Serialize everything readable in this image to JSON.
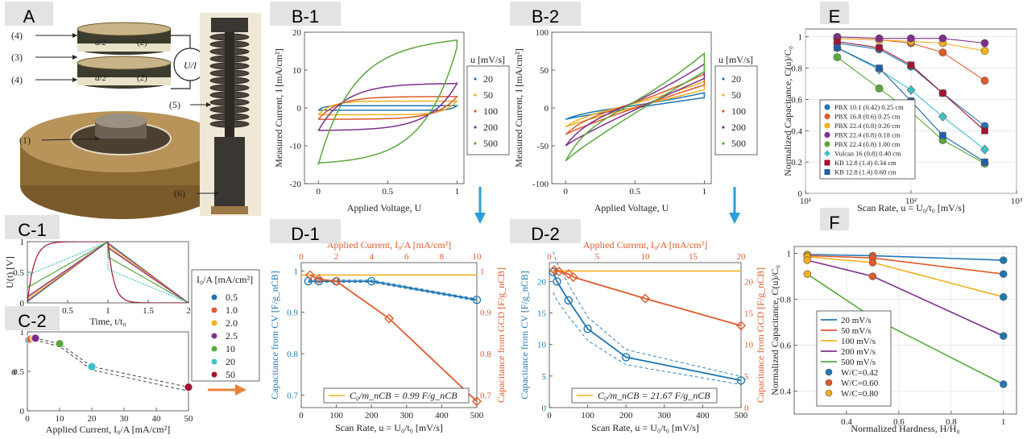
{
  "panels": {
    "A": {
      "label": "A",
      "callouts": [
        "(4)",
        "(3)",
        "(4)",
        "(1)",
        "(5)",
        "(6)"
      ],
      "half_d": "d/2",
      "ring": "(2)",
      "meter": "U/I"
    },
    "B1": {
      "label": "B-1"
    },
    "B2": {
      "label": "B-2"
    },
    "C1": {
      "label": "C-1"
    },
    "C2": {
      "label": "C-2"
    },
    "D1": {
      "label": "D-1"
    },
    "D2": {
      "label": "D-2"
    },
    "E": {
      "label": "E"
    },
    "F": {
      "label": "F"
    }
  },
  "colors": {
    "blue": "#1f77b4",
    "orange": "#e05a2b",
    "yellow": "#f2b01e",
    "purple": "#7e2f8e",
    "green": "#5aa83c",
    "cyan": "#3fc1c9",
    "crimson": "#a2142f",
    "darkred": "#a2142f",
    "arrow_blue": "#2a9fd8",
    "arrow_orange": "#e8823a"
  },
  "chart_data": [
    {
      "id": "B1",
      "type": "line",
      "xlabel": "Applied Voltage, U",
      "ylabel": "Measured Current, I [mA/cm²]",
      "xlim": [
        -0.1,
        1.05
      ],
      "ylim": [
        -20,
        20
      ],
      "xticks": [
        "0",
        "0.5",
        "1"
      ],
      "yticks": [
        "-20",
        "-10",
        "0",
        "10",
        "20"
      ],
      "legend_title": "u [mV/s]",
      "series": [
        {
          "name": "20",
          "color": "#1f77b4",
          "plateau_top": 0.6,
          "plateau_bottom": -0.6
        },
        {
          "name": "50",
          "color": "#f2b01e",
          "plateau_top": 1.8,
          "plateau_bottom": -1.8
        },
        {
          "name": "100",
          "color": "#e05a2b",
          "plateau_top": 3.0,
          "plateau_bottom": -3.0
        },
        {
          "name": "200",
          "color": "#7e2f8e",
          "plateau_top": 6.5,
          "plateau_bottom": -6.0
        },
        {
          "name": "500",
          "color": "#5aa83c",
          "plateau_top": 16,
          "plateau_bottom": -15
        }
      ]
    },
    {
      "id": "B2",
      "type": "line",
      "xlabel": "Applied Voltage, U",
      "ylabel": "Measured Current, I [mA/cm²]",
      "xlim": [
        -0.1,
        1.05
      ],
      "ylim": [
        -100,
        100
      ],
      "xticks": [
        "0",
        "0.5",
        "1"
      ],
      "yticks": [
        "-100",
        "-50",
        "0",
        "50",
        "100"
      ],
      "legend_title": "u [mV/s]",
      "series": [
        {
          "name": "20",
          "color": "#1f77b4",
          "top_right": 20,
          "bottom_left": -15
        },
        {
          "name": "50",
          "color": "#f2b01e",
          "top_right": 35,
          "bottom_left": -25
        },
        {
          "name": "100",
          "color": "#e05a2b",
          "top_right": 45,
          "bottom_left": -35
        },
        {
          "name": "200",
          "color": "#7e2f8e",
          "top_right": 58,
          "bottom_left": -50
        },
        {
          "name": "500",
          "color": "#5aa83c",
          "top_right": 72,
          "bottom_left": -70
        }
      ]
    },
    {
      "id": "C1",
      "type": "line",
      "xlabel": "Time, t/t₀",
      "ylabel": "U(t) [V]",
      "xlim": [
        0,
        2
      ],
      "ylim": [
        0,
        1
      ],
      "xticks": [
        "0",
        "0.5",
        "1",
        "1.5",
        "2"
      ],
      "yticks": [
        "0",
        "0.5",
        "1"
      ],
      "legend_title": "I₀/A [mA/cm²]",
      "legend": [
        "0.5",
        "1.0",
        "2.0",
        "2.5",
        "10",
        "20",
        "50"
      ],
      "legend_colors": [
        "#1f77b4",
        "#e05a2b",
        "#f2b01e",
        "#7e2f8e",
        "#5aa83c",
        "#3fc1c9",
        "#a2142f"
      ]
    },
    {
      "id": "C2",
      "type": "scatter",
      "xlabel": "Applied Current, I₀/A [mA/cm²]",
      "ylabel": "α",
      "xlim": [
        0,
        50
      ],
      "ylim": [
        0,
        1
      ],
      "xticks": [
        "0",
        "10",
        "20",
        "30",
        "40",
        "50"
      ],
      "yticks": [
        "0",
        "0.5",
        "1"
      ],
      "x": [
        0.5,
        1.0,
        2.0,
        2.5,
        10,
        20,
        50
      ],
      "y": [
        0.9,
        0.91,
        0.92,
        0.92,
        0.85,
        0.56,
        0.3
      ],
      "colors": [
        "#1f77b4",
        "#e05a2b",
        "#f2b01e",
        "#7e2f8e",
        "#5aa83c",
        "#3fc1c9",
        "#a2142f"
      ]
    },
    {
      "id": "D1",
      "type": "line",
      "xlabel": "Scan Rate, u = U₀/t₀ [mV/s]",
      "ylabel_left": "Capacitance from CV [F/g_nCB]",
      "ylabel_right": "Capacitance from GCD [F/g_nCB]",
      "xlabel_top": "Applied Current, I₀/A [mA/cm²]",
      "xlim": [
        0,
        500
      ],
      "ylim_left": [
        0.67,
        1.02
      ],
      "xlim_top": [
        0,
        10
      ],
      "ylim_right": [
        0.67,
        1.02
      ],
      "xticks": [
        "0",
        "100",
        "200",
        "300",
        "400",
        "500"
      ],
      "xticks_top": [
        "0",
        "2",
        "4",
        "6",
        "8",
        "10"
      ],
      "yticks": [
        "0.7",
        "0.8",
        "0.9",
        "1"
      ],
      "legend": "C₀/m_nCB = 0.99 F/g_nCB",
      "series": [
        {
          "name": "CV",
          "color": "#1f77b4",
          "x": [
            20,
            50,
            100,
            200,
            500
          ],
          "y": [
            0.975,
            0.975,
            0.975,
            0.975,
            0.93
          ]
        },
        {
          "name": "GCD",
          "color": "#e05a2b",
          "x_top": [
            0.5,
            1.0,
            2.0,
            5.0,
            10.0
          ],
          "y": [
            0.99,
            0.98,
            0.975,
            0.885,
            0.685
          ]
        },
        {
          "name": "C0",
          "color": "#f2b01e",
          "y_const": 0.99
        }
      ]
    },
    {
      "id": "D2",
      "type": "line",
      "xlabel": "Scan Rate, u = U₀/t₀ [mV/s]",
      "ylabel_left": "Capacitance from CV [F/g_nCB]",
      "ylabel_right": "Capacitance from GCD [F/g_nCB]",
      "xlabel_top": "Applied Current, I₀/A [mA/cm²]",
      "xlim": [
        0,
        500
      ],
      "ylim_left": [
        0,
        23
      ],
      "xlim_top": [
        0,
        20
      ],
      "ylim_right": [
        0,
        23
      ],
      "xticks": [
        "0",
        "100",
        "200",
        "300",
        "400",
        "500"
      ],
      "xticks_top": [
        "0",
        "5",
        "10",
        "15",
        "20"
      ],
      "yticks": [
        "0",
        "5",
        "10",
        "15",
        "20"
      ],
      "legend": "C₀/m_nCB = 21.67 F/g_nCB",
      "series": [
        {
          "name": "CV",
          "color": "#1f77b4",
          "x": [
            10,
            20,
            50,
            100,
            200,
            500
          ],
          "y": [
            21.5,
            20,
            17,
            12.5,
            8,
            4.3
          ]
        },
        {
          "name": "GCD",
          "color": "#e05a2b",
          "x_top": [
            0.5,
            1.0,
            2.0,
            2.5,
            10,
            20
          ],
          "y": [
            21.8,
            21.6,
            21.2,
            20.7,
            17.3,
            13
          ]
        },
        {
          "name": "C0",
          "color": "#f2b01e",
          "y_const": 21.67
        }
      ]
    },
    {
      "id": "E",
      "type": "line",
      "xlabel": "Scan Rate, u = U₀/t₀ [mV/s]",
      "ylabel": "Normalized Capacitance, C(u)/C₀",
      "xscale": "log",
      "xlim": [
        10,
        1000
      ],
      "ylim": [
        0,
        1.05
      ],
      "xticks": [
        "10¹",
        "10²",
        "10³"
      ],
      "yticks": [
        "0",
        "0.2",
        "0.4",
        "0.6",
        "0.8",
        "1"
      ],
      "x": [
        20,
        50,
        100,
        200,
        500
      ],
      "series": [
        {
          "name": "PBX 10.1 (0.42) 0.25 cm",
          "color": "#1f77b4",
          "marker": "circle",
          "y": [
            0.96,
            0.92,
            0.81,
            0.64,
            0.43
          ]
        },
        {
          "name": "PBX 16.8 (0.6) 0.25 cm",
          "color": "#e05a2b",
          "marker": "circle",
          "y": [
            0.99,
            0.98,
            0.96,
            0.9,
            0.72
          ]
        },
        {
          "name": "PBX 22.4 (0.8) 0.26 cm",
          "color": "#f2b01e",
          "marker": "circle",
          "y": [
            0.99,
            0.98,
            0.97,
            0.96,
            0.91
          ]
        },
        {
          "name": "PBX 22.4 (0.8) 0.18 cm",
          "color": "#7e2f8e",
          "marker": "circle",
          "y": [
            1.0,
            0.99,
            0.99,
            0.99,
            0.96
          ]
        },
        {
          "name": "PBX 22.4 (0.8) 1.00 cm",
          "color": "#5aa83c",
          "marker": "circle",
          "y": [
            0.87,
            0.67,
            0.52,
            0.34,
            0.19
          ]
        },
        {
          "name": "Vulcan 16 (0.8) 0.40 cm",
          "color": "#3fc1c9",
          "marker": "diamond",
          "y": [
            0.93,
            0.79,
            0.66,
            0.49,
            0.28
          ]
        },
        {
          "name": "KB 12.8 (1.4) 0.34 cm",
          "color": "#a2142f",
          "marker": "square",
          "y": [
            0.97,
            0.93,
            0.82,
            0.64,
            0.4
          ]
        },
        {
          "name": "KB 12.8 (1.4) 0.60 cm",
          "color": "#1f5fa8",
          "marker": "square",
          "y": [
            0.93,
            0.8,
            0.59,
            0.37,
            0.2
          ]
        }
      ]
    },
    {
      "id": "F",
      "type": "line",
      "xlabel": "Normalized Hardness, H/H₀",
      "ylabel": "Normalized Capacitance, C(u)/C₀",
      "xlim": [
        0.2,
        1.05
      ],
      "ylim": [
        0.3,
        1.03
      ],
      "xticks": [
        "0.4",
        "0.6",
        "0.8",
        "1"
      ],
      "yticks": [
        "0.4",
        "0.6",
        "0.8",
        "1"
      ],
      "x": [
        0.25,
        0.5,
        1.0
      ],
      "series": [
        {
          "name": "20 mV/s",
          "color": "#1f77b4",
          "y": [
            0.995,
            0.99,
            0.97
          ]
        },
        {
          "name": "50 mV/s",
          "color": "#e05a2b",
          "y": [
            0.99,
            0.98,
            0.91
          ]
        },
        {
          "name": "100 mV/s",
          "color": "#f2b01e",
          "y": [
            0.985,
            0.96,
            0.81
          ]
        },
        {
          "name": "200 mV/s",
          "color": "#7e2f8e",
          "y": [
            0.97,
            0.9,
            0.64
          ]
        },
        {
          "name": "500 mV/s",
          "color": "#5aa83c",
          "y": [
            0.91,
            0.72,
            0.43
          ]
        }
      ],
      "marker_legend": [
        {
          "name": "W/C=0.42",
          "color": "#1f77b4"
        },
        {
          "name": "W/C=0.60",
          "color": "#e05a2b"
        },
        {
          "name": "W/C=0.80",
          "color": "#f2b01e"
        }
      ]
    }
  ]
}
